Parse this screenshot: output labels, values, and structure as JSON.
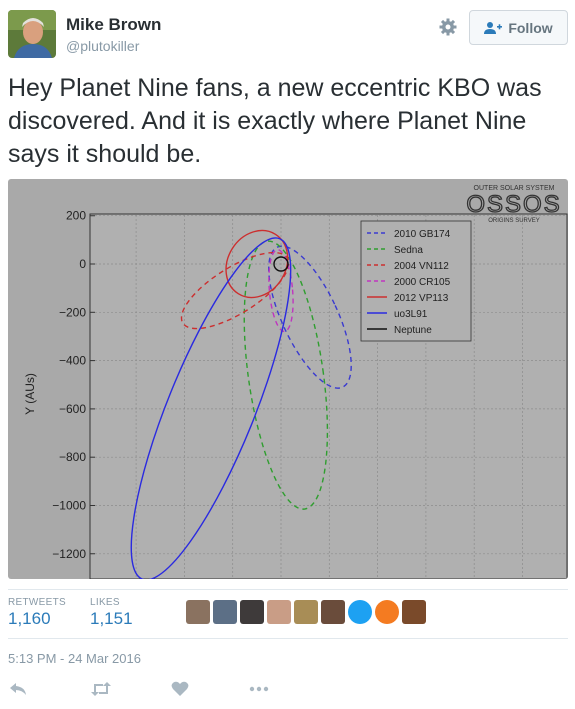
{
  "author": {
    "name": "Mike Brown",
    "handle": "@plutokiller"
  },
  "follow_button": {
    "label": "Follow"
  },
  "tweet": {
    "text": "Hey Planet Nine fans, a new eccentric KBO was discovered. And it is exactly where Planet Nine says it should be."
  },
  "chart_data": {
    "type": "line",
    "ylabel": "Y (AUs)",
    "yticks": [
      200,
      0,
      -200,
      -400,
      -600,
      -800,
      -1000,
      -1200
    ],
    "ylim": [
      -1300,
      230
    ],
    "logo": {
      "title": "OUTER SOLAR SYSTEM",
      "main": "OSSOS",
      "sub": "ORIGINS SURVEY"
    },
    "legend_placement": "top-right",
    "grid": true,
    "series": [
      {
        "name": "2010 GB174",
        "color": "#3a3ad0",
        "dash": true,
        "ellipse": {
          "cx": 120,
          "cy": -220,
          "rx": 115,
          "ry": 320,
          "rot": -25
        }
      },
      {
        "name": "Sedna",
        "color": "#2f9e2f",
        "dash": true,
        "ellipse": {
          "cx": 20,
          "cy": -460,
          "rx": 155,
          "ry": 560,
          "rot": -8
        }
      },
      {
        "name": "2004 VN112",
        "color": "#cc2f2f",
        "dash": true,
        "ellipse": {
          "cx": -190,
          "cy": -110,
          "rx": 95,
          "ry": 255,
          "rot": 58
        }
      },
      {
        "name": "2000 CR105",
        "color": "#bf35bf",
        "dash": true,
        "ellipse": {
          "cx": 0,
          "cy": -110,
          "rx": 48,
          "ry": 170,
          "rot": -5
        }
      },
      {
        "name": "2012 VP113",
        "color": "#cc2f2f",
        "dash": false,
        "ellipse": {
          "cx": -100,
          "cy": 0,
          "rx": 120,
          "ry": 145,
          "rot": 32
        }
      },
      {
        "name": "uo3L91",
        "color": "#2a2ae0",
        "dash": false,
        "ellipse": {
          "cx": -290,
          "cy": -600,
          "rx": 180,
          "ry": 760,
          "rot": 22
        }
      },
      {
        "name": "Neptune",
        "color": "#111111",
        "dash": false,
        "ellipse": {
          "cx": 0,
          "cy": 0,
          "rx": 30,
          "ry": 30,
          "rot": 0
        }
      }
    ]
  },
  "stats": {
    "retweets_label": "RETWEETS",
    "retweets_value": "1,160",
    "likes_label": "LIKES",
    "likes_value": "1,151"
  },
  "liker_avatars": [
    "#8a7260",
    "#5c6f86",
    "#3e3a3a",
    "#c99d86",
    "#a88d56",
    "#6a4c3b",
    "#1da1f2",
    "#f47b21",
    "#7a4a2a"
  ],
  "timestamp": "5:13 PM - 24 Mar 2016",
  "icons": {
    "gear": "gear-icon",
    "reply": "reply-icon",
    "retweet": "retweet-icon",
    "like": "heart-icon",
    "more": "more-icon"
  },
  "colors": {
    "accent": "#2b7bb9",
    "muted": "#8899a6",
    "chart_bg": "#a9a9a9"
  }
}
